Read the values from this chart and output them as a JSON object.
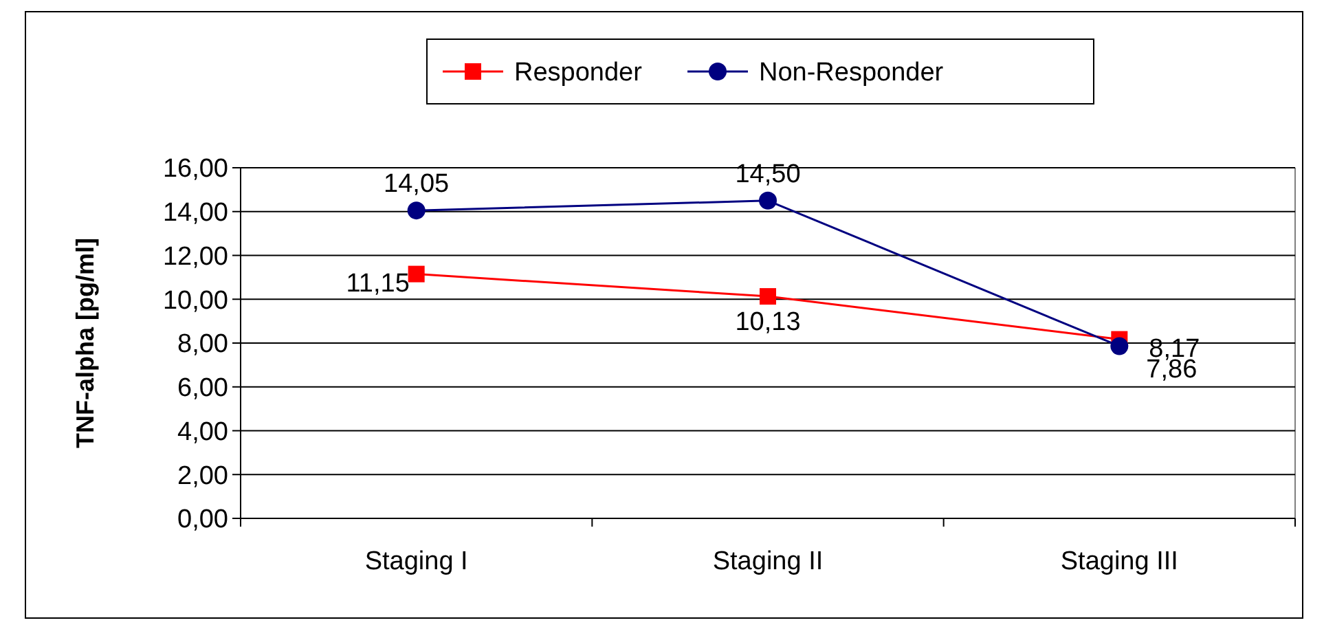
{
  "chart_data": {
    "type": "line",
    "ylabel": "TNF-alpha [pg/ml]",
    "categories": [
      "Staging I",
      "Staging II",
      "Staging III"
    ],
    "series": [
      {
        "name": "Responder",
        "color": "#ff0000",
        "marker": "square",
        "values": [
          11.15,
          10.13,
          8.17
        ],
        "value_labels": [
          "11,15",
          "10,13",
          "8,17"
        ]
      },
      {
        "name": "Non-Responder",
        "color": "#000080",
        "marker": "circle",
        "values": [
          14.05,
          14.5,
          7.86
        ],
        "value_labels": [
          "14,05",
          "14,50",
          "7,86"
        ]
      }
    ],
    "ylim": [
      0,
      16
    ],
    "yticks": [
      {
        "value": 0,
        "label": "0,00"
      },
      {
        "value": 2,
        "label": "2,00"
      },
      {
        "value": 4,
        "label": "4,00"
      },
      {
        "value": 6,
        "label": "6,00"
      },
      {
        "value": 8,
        "label": "8,00"
      },
      {
        "value": 10,
        "label": "10,00"
      },
      {
        "value": 12,
        "label": "12,00"
      },
      {
        "value": 14,
        "label": "14,00"
      },
      {
        "value": 16,
        "label": "16,00"
      }
    ],
    "grid": "y",
    "legend": "top"
  }
}
